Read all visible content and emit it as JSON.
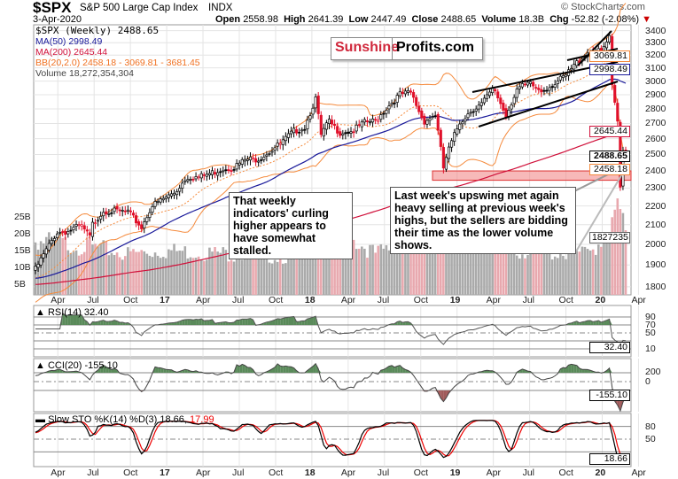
{
  "header": {
    "symbol": "$SPX",
    "name": "S&P 500 Large Cap Index",
    "exchange": "INDX",
    "date": "3-Apr-2020",
    "copyright": "© StockCharts.com",
    "open_label": "Open",
    "open": "2558.98",
    "high_label": "High",
    "high": "2641.39",
    "low_label": "Low",
    "low": "2447.49",
    "close_label": "Close",
    "close": "2488.65",
    "volume_label": "Volume",
    "volume": "18.3B",
    "chg_label": "Chg",
    "chg": "-52.82 (-2.08%)",
    "chg_arrow": "▼"
  },
  "legend": {
    "price": "$SPX (Weekly) 2488.65",
    "ma50": "MA(50) 2998.49",
    "ma200": "MA(200) 2645.44",
    "bb": "BB(20,2.0) 2458.18 - 3069.81 - 3681.45",
    "volume": "Volume 18,272,354,304"
  },
  "logo": {
    "part1": "Sunshine",
    "part2": "Profits.com"
  },
  "notes": {
    "left": "That weekly indicators' curling higher appears to have somewhat stalled.",
    "right": "Last week's upswing met again heavy selling at previous week's highs, but the sellers are bidding their time as the lower volume shows."
  },
  "tags": {
    "bb_upper": "3069.81",
    "ma50": "2998.49",
    "ma200": "2645.44",
    "close": "2488.65",
    "bb_lower": "2458.18",
    "volume": "1827235",
    "rsi": "32.40",
    "cci": "-155.10",
    "sto": "18.66"
  },
  "colors": {
    "ma50": "#1a1a9a",
    "ma200": "#d0103a",
    "bb": "#f58a3c",
    "down": "#e0102a",
    "up": "#000000",
    "volume_up": "#aaaaaa",
    "volume_down": "#e8a8ae",
    "support": "#f08080"
  },
  "chart_data": [
    {
      "type": "candlestick",
      "title": "$SPX (Weekly)",
      "scale": "log",
      "ylim": [
        1800,
        3400
      ],
      "y_ticks": [
        "3400",
        "3300",
        "3200",
        "3100",
        "3000",
        "2900",
        "2800",
        "2700",
        "2600",
        "2500",
        "2400",
        "2300",
        "2200",
        "2100",
        "2000",
        "1900",
        "1800"
      ],
      "volume_ticks": [
        "25B",
        "20B",
        "15B",
        "10B",
        "5B"
      ],
      "x_ticks": [
        "Apr",
        "Jul",
        "Oct",
        "17",
        "Apr",
        "Jul",
        "Oct",
        "18",
        "Apr",
        "Jul",
        "Oct",
        "19",
        "Apr",
        "Jul",
        "Oct",
        "20",
        "Apr"
      ],
      "close_anchors": [
        [
          "2016-02-05",
          1880
        ],
        [
          "2016-02-26",
          1948
        ],
        [
          "2016-03-31",
          2060
        ],
        [
          "2016-04-29",
          2065
        ],
        [
          "2016-05-31",
          2097
        ],
        [
          "2016-06-24",
          2037
        ],
        [
          "2016-06-30",
          2099
        ],
        [
          "2016-07-29",
          2174
        ],
        [
          "2016-08-31",
          2171
        ],
        [
          "2016-09-30",
          2168
        ],
        [
          "2016-11-04",
          2085
        ],
        [
          "2016-11-30",
          2199
        ],
        [
          "2016-12-30",
          2239
        ],
        [
          "2017-01-31",
          2279
        ],
        [
          "2017-02-28",
          2364
        ],
        [
          "2017-03-31",
          2363
        ],
        [
          "2017-04-28",
          2384
        ],
        [
          "2017-05-31",
          2412
        ],
        [
          "2017-06-30",
          2423
        ],
        [
          "2017-07-31",
          2470
        ],
        [
          "2017-08-31",
          2472
        ],
        [
          "2017-09-29",
          2519
        ],
        [
          "2017-10-31",
          2575
        ],
        [
          "2017-11-30",
          2648
        ],
        [
          "2017-12-29",
          2674
        ],
        [
          "2018-01-26",
          2873
        ],
        [
          "2018-02-09",
          2620
        ],
        [
          "2018-02-28",
          2714
        ],
        [
          "2018-03-29",
          2641
        ],
        [
          "2018-04-30",
          2648
        ],
        [
          "2018-05-31",
          2705
        ],
        [
          "2018-06-29",
          2718
        ],
        [
          "2018-07-31",
          2816
        ],
        [
          "2018-08-31",
          2902
        ],
        [
          "2018-09-28",
          2914
        ],
        [
          "2018-10-31",
          2712
        ],
        [
          "2018-11-30",
          2760
        ],
        [
          "2018-12-21",
          2417
        ],
        [
          "2018-12-31",
          2507
        ],
        [
          "2019-01-31",
          2704
        ],
        [
          "2019-02-28",
          2784
        ],
        [
          "2019-03-29",
          2834
        ],
        [
          "2019-04-30",
          2946
        ],
        [
          "2019-05-31",
          2752
        ],
        [
          "2019-06-28",
          2942
        ],
        [
          "2019-07-31",
          2980
        ],
        [
          "2019-08-30",
          2926
        ],
        [
          "2019-09-30",
          2977
        ],
        [
          "2019-10-31",
          3038
        ],
        [
          "2019-11-29",
          3141
        ],
        [
          "2019-12-31",
          3231
        ],
        [
          "2020-01-31",
          3226
        ],
        [
          "2020-02-21",
          3338
        ],
        [
          "2020-02-28",
          2954
        ],
        [
          "2020-03-13",
          2711
        ],
        [
          "2020-03-20",
          2305
        ],
        [
          "2020-03-27",
          2541
        ],
        [
          "2020-04-03",
          2489
        ]
      ],
      "volume_anchors_billions": [
        [
          "2016-02-05",
          18
        ],
        [
          "2016-06-30",
          16
        ],
        [
          "2016-09-30",
          14
        ],
        [
          "2016-12-30",
          15
        ],
        [
          "2017-06-30",
          14
        ],
        [
          "2017-12-29",
          13
        ],
        [
          "2018-02-09",
          25
        ],
        [
          "2018-06-29",
          14
        ],
        [
          "2018-10-31",
          20
        ],
        [
          "2018-12-21",
          23
        ],
        [
          "2019-06-28",
          15
        ],
        [
          "2019-12-31",
          14
        ],
        [
          "2020-02-28",
          22
        ],
        [
          "2020-03-13",
          28
        ],
        [
          "2020-03-20",
          27
        ],
        [
          "2020-03-27",
          24
        ],
        [
          "2020-04-03",
          18.3
        ]
      ]
    },
    {
      "type": "line",
      "title": "RSI(14) 32.40",
      "y_ticks": [
        "90",
        "70",
        "50",
        "10"
      ],
      "ylim": [
        0,
        100
      ]
    },
    {
      "type": "line",
      "title": "CCI(20) -155.10",
      "y_ticks": [
        "200",
        "0"
      ]
    },
    {
      "type": "line",
      "title_prefix": "Slow STO %K(14) %D(3) 18.66,",
      "title_d": "17.99",
      "y_ticks": [
        "80",
        "50"
      ],
      "ylim": [
        0,
        100
      ]
    }
  ]
}
